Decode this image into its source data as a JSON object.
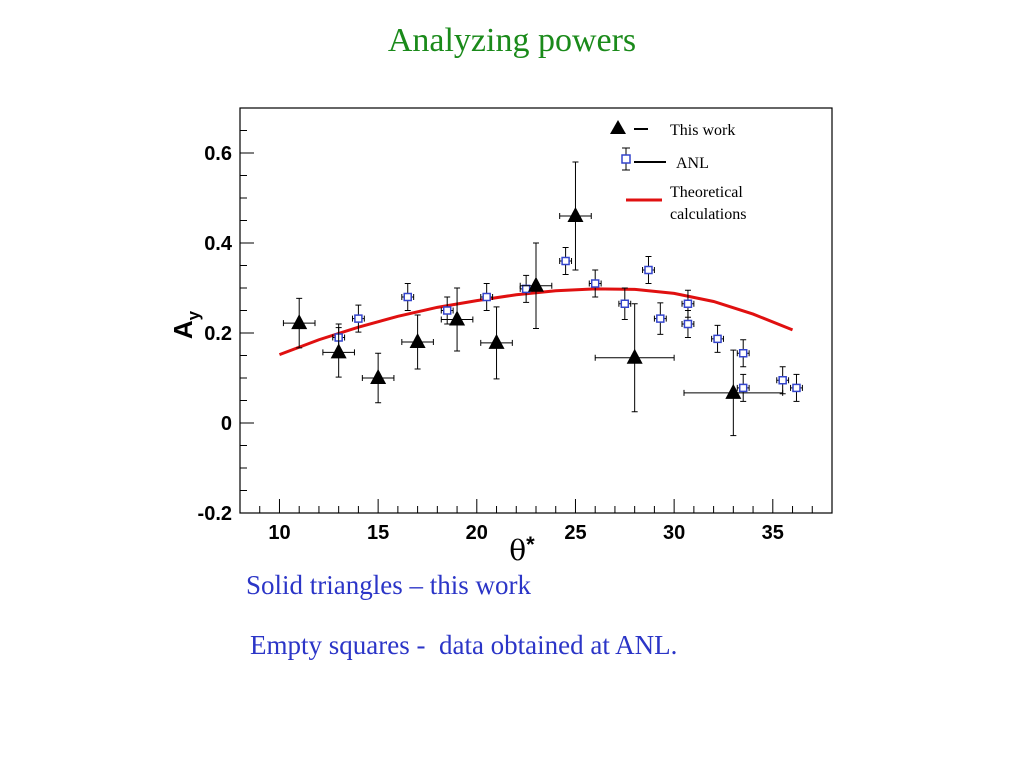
{
  "slide": {
    "title": "Analyzing powers",
    "caption_1": "Solid triangles – this work",
    "caption_2": "Empty squares -  data obtained at ANL."
  },
  "chart_data": {
    "type": "scatter",
    "xlabel_main": "θ",
    "xlabel_sup": "*",
    "ylabel_main": "A",
    "ylabel_sub": "y",
    "xlim": [
      8,
      38
    ],
    "ylim": [
      -0.2,
      0.7
    ],
    "x_ticks": [
      10,
      15,
      20,
      25,
      30,
      35
    ],
    "y_ticks": [
      -0.2,
      0,
      0.2,
      0.4,
      0.6
    ],
    "y_tick_labels": [
      "-0.2",
      "0",
      "0.2",
      "0.4",
      "0.6"
    ],
    "grid": false,
    "legend_position": "top-right",
    "legend": [
      {
        "label": "This work",
        "marker": "triangle"
      },
      {
        "label": "ANL",
        "marker": "square"
      },
      {
        "label": "Theoretical calculations",
        "label_lines": [
          "Theoretical",
          "calculations"
        ],
        "marker": "line"
      }
    ],
    "colors": {
      "this_work": "#000000",
      "anl": "#3344cc",
      "theory": "#e01010"
    },
    "series": [
      {
        "name": "This work",
        "marker": "triangle",
        "points": [
          {
            "x": 11,
            "y": 0.222,
            "xerr": 0.8,
            "yerr": 0.055
          },
          {
            "x": 13,
            "y": 0.157,
            "xerr": 0.8,
            "yerr": 0.055
          },
          {
            "x": 15,
            "y": 0.1,
            "xerr": 0.8,
            "yerr": 0.055
          },
          {
            "x": 17,
            "y": 0.18,
            "xerr": 0.8,
            "yerr": 0.06
          },
          {
            "x": 19,
            "y": 0.23,
            "xerr": 0.8,
            "yerr": 0.07
          },
          {
            "x": 21,
            "y": 0.178,
            "xerr": 0.8,
            "yerr": 0.08
          },
          {
            "x": 23,
            "y": 0.305,
            "xerr": 0.8,
            "yerr": 0.095
          },
          {
            "x": 25,
            "y": 0.46,
            "xerr": 0.8,
            "yerr": 0.12
          },
          {
            "x": 28,
            "y": 0.145,
            "xerr": 2.0,
            "yerr": 0.12
          },
          {
            "x": 33,
            "y": 0.067,
            "xerr": 2.5,
            "yerr": 0.095
          }
        ]
      },
      {
        "name": "ANL",
        "marker": "square",
        "points": [
          {
            "x": 13,
            "y": 0.19,
            "xerr": 0.3,
            "yerr": 0.03
          },
          {
            "x": 14,
            "y": 0.232,
            "xerr": 0.3,
            "yerr": 0.03
          },
          {
            "x": 16.5,
            "y": 0.28,
            "xerr": 0.3,
            "yerr": 0.03
          },
          {
            "x": 18.5,
            "y": 0.25,
            "xerr": 0.3,
            "yerr": 0.03
          },
          {
            "x": 20.5,
            "y": 0.28,
            "xerr": 0.3,
            "yerr": 0.03
          },
          {
            "x": 22.5,
            "y": 0.298,
            "xerr": 0.3,
            "yerr": 0.03
          },
          {
            "x": 24.5,
            "y": 0.36,
            "xerr": 0.3,
            "yerr": 0.03
          },
          {
            "x": 26,
            "y": 0.31,
            "xerr": 0.3,
            "yerr": 0.03
          },
          {
            "x": 27.5,
            "y": 0.265,
            "xerr": 0.3,
            "yerr": 0.035
          },
          {
            "x": 28.7,
            "y": 0.34,
            "xerr": 0.3,
            "yerr": 0.03
          },
          {
            "x": 29.3,
            "y": 0.232,
            "xerr": 0.3,
            "yerr": 0.035
          },
          {
            "x": 30.7,
            "y": 0.265,
            "xerr": 0.3,
            "yerr": 0.03
          },
          {
            "x": 30.7,
            "y": 0.22,
            "xerr": 0.3,
            "yerr": 0.03
          },
          {
            "x": 32.2,
            "y": 0.187,
            "xerr": 0.3,
            "yerr": 0.03
          },
          {
            "x": 33.5,
            "y": 0.155,
            "xerr": 0.3,
            "yerr": 0.03
          },
          {
            "x": 33.5,
            "y": 0.078,
            "xerr": 0.3,
            "yerr": 0.03
          },
          {
            "x": 35.5,
            "y": 0.095,
            "xerr": 0.3,
            "yerr": 0.03
          },
          {
            "x": 36.2,
            "y": 0.078,
            "xerr": 0.3,
            "yerr": 0.03
          }
        ]
      },
      {
        "name": "Theoretical calculations",
        "marker": "line",
        "points": [
          {
            "x": 10,
            "y": 0.152
          },
          {
            "x": 12,
            "y": 0.185
          },
          {
            "x": 14,
            "y": 0.213
          },
          {
            "x": 16,
            "y": 0.237
          },
          {
            "x": 18,
            "y": 0.257
          },
          {
            "x": 20,
            "y": 0.272
          },
          {
            "x": 22,
            "y": 0.285
          },
          {
            "x": 24,
            "y": 0.294
          },
          {
            "x": 26,
            "y": 0.298
          },
          {
            "x": 28,
            "y": 0.297
          },
          {
            "x": 30,
            "y": 0.288
          },
          {
            "x": 32,
            "y": 0.27
          },
          {
            "x": 34,
            "y": 0.242
          },
          {
            "x": 36,
            "y": 0.207
          }
        ]
      }
    ]
  }
}
